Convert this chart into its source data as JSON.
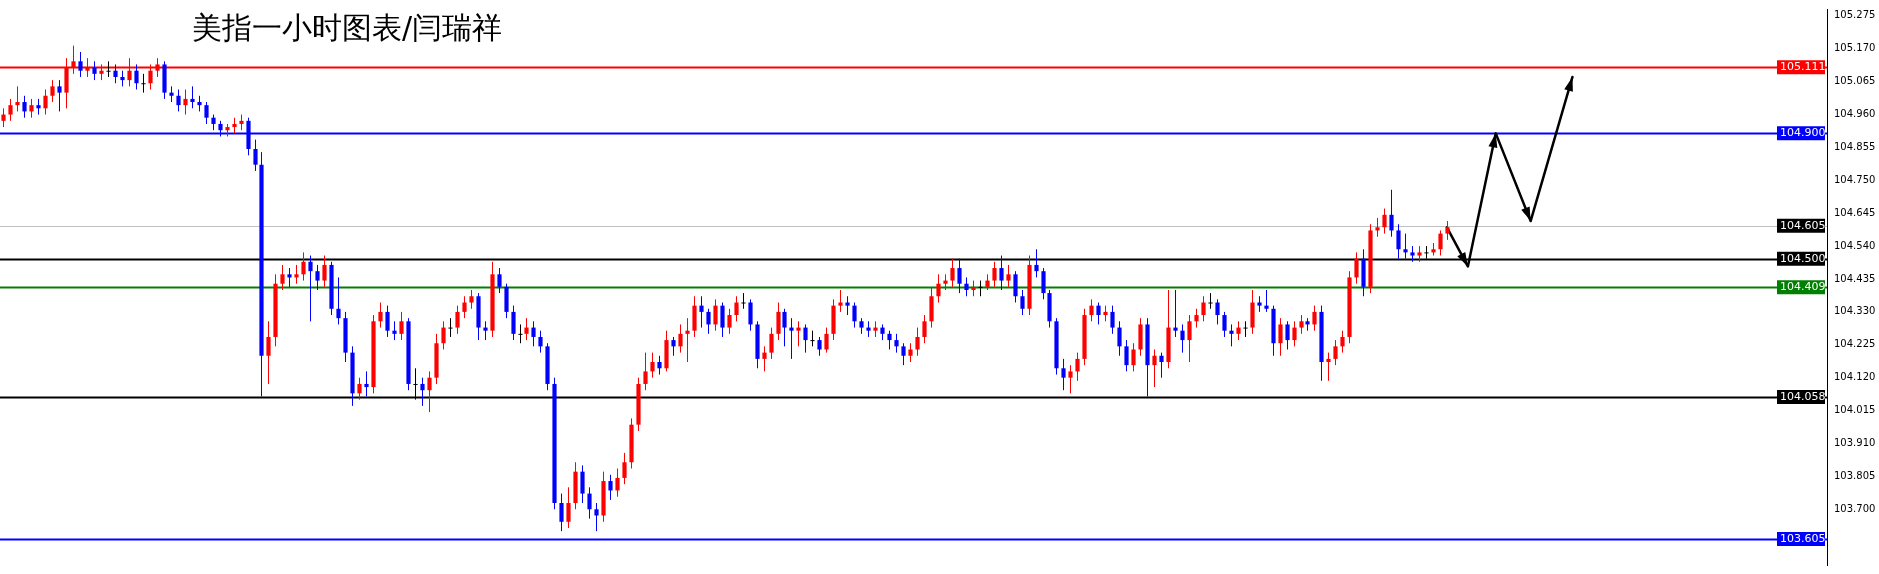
{
  "chart_data": {
    "type": "candlestick",
    "title": "美指一小时图表/闫瑞祥",
    "categories": [
      null,
      null,
      null,
      null,
      null,
      null,
      null,
      null,
      null,
      null,
      null,
      null,
      null,
      null,
      null,
      null,
      null,
      null,
      null,
      null,
      null,
      null,
      null,
      null,
      null,
      null,
      null,
      null,
      null,
      null,
      null,
      null,
      null,
      null,
      null,
      null,
      null,
      null,
      null,
      null,
      null,
      null,
      null,
      null,
      null,
      null,
      null,
      null,
      null,
      null,
      null,
      null,
      null,
      null,
      null,
      null,
      null,
      null,
      null,
      null,
      null,
      null,
      null,
      null,
      null,
      null,
      null,
      null,
      null,
      null,
      null,
      null,
      null,
      null,
      null,
      null,
      null,
      null,
      null,
      null,
      null,
      null,
      null,
      null,
      null,
      null,
      null,
      null,
      null,
      null,
      null,
      null,
      null,
      null,
      null,
      null,
      null,
      null,
      null,
      null,
      null,
      null,
      null,
      null,
      null,
      null,
      null,
      null,
      null,
      null,
      null,
      null,
      null,
      null,
      null,
      null,
      null,
      null,
      null,
      null,
      null,
      null,
      null,
      null,
      null,
      null,
      null,
      null,
      null,
      null,
      null,
      null,
      null,
      null,
      null,
      null,
      null,
      null,
      null,
      null,
      null,
      null,
      null,
      null,
      null,
      null,
      null,
      null,
      null,
      null,
      null,
      null,
      null,
      null,
      null,
      null,
      null,
      null,
      null,
      null,
      null,
      null,
      null,
      null,
      null,
      null,
      null,
      null,
      null,
      null,
      null,
      null,
      null,
      null,
      null,
      null,
      null,
      null,
      null,
      null,
      null,
      null,
      null,
      null,
      null,
      null,
      null,
      null,
      null,
      null,
      null,
      null,
      null,
      null,
      null,
      null,
      null,
      null,
      null,
      null,
      null,
      null,
      null,
      null,
      null,
      null,
      null,
      null,
      null,
      null,
      null,
      null,
      null,
      null,
      null,
      null,
      null,
      null,
      null,
      null,
      null,
      null,
      null,
      null,
      null,
      null,
      null,
      null,
      null,
      null,
      null,
      null,
      null,
      null,
      null,
      null,
      null,
      null,
      null,
      null,
      null,
      null,
      null,
      null,
      null,
      null,
      null,
      null,
      null,
      null,
      null,
      null,
      null,
      null,
      null,
      null,
      null,
      null,
      null,
      null,
      null,
      null
    ],
    "ohlc": [
      [
        104.94,
        104.98,
        104.92,
        104.96
      ],
      [
        104.96,
        105.01,
        104.94,
        104.99
      ],
      [
        104.99,
        105.05,
        104.97,
        105.0
      ],
      [
        105.0,
        105.02,
        104.95,
        104.97
      ],
      [
        104.97,
        105.01,
        104.95,
        104.99
      ],
      [
        104.99,
        105.01,
        104.96,
        104.98
      ],
      [
        104.98,
        105.04,
        104.96,
        105.02
      ],
      [
        105.02,
        105.07,
        105.0,
        105.05
      ],
      [
        105.05,
        105.07,
        104.97,
        105.03
      ],
      [
        105.03,
        105.14,
        104.98,
        105.11
      ],
      [
        105.11,
        105.18,
        105.09,
        105.13
      ],
      [
        105.13,
        105.16,
        105.08,
        105.1
      ],
      [
        105.1,
        105.14,
        105.08,
        105.11
      ],
      [
        105.11,
        105.13,
        105.07,
        105.09
      ],
      [
        105.09,
        105.12,
        105.07,
        105.1
      ],
      [
        105.1,
        105.13,
        105.08,
        105.1
      ],
      [
        105.1,
        105.12,
        105.06,
        105.08
      ],
      [
        105.08,
        105.1,
        105.05,
        105.07
      ],
      [
        105.07,
        105.14,
        105.05,
        105.1
      ],
      [
        105.1,
        105.12,
        105.04,
        105.06
      ],
      [
        105.06,
        105.09,
        105.03,
        105.06
      ],
      [
        105.06,
        105.12,
        105.04,
        105.1
      ],
      [
        105.1,
        105.14,
        105.08,
        105.12
      ],
      [
        105.12,
        105.13,
        105.01,
        105.03
      ],
      [
        105.03,
        105.05,
        105.0,
        105.02
      ],
      [
        105.02,
        105.04,
        104.97,
        104.99
      ],
      [
        104.99,
        105.04,
        104.96,
        105.01
      ],
      [
        105.01,
        105.05,
        104.98,
        105.0
      ],
      [
        105.0,
        105.02,
        104.97,
        104.99
      ],
      [
        104.99,
        105.0,
        104.93,
        104.95
      ],
      [
        104.95,
        104.96,
        104.91,
        104.93
      ],
      [
        104.93,
        104.94,
        104.89,
        104.91
      ],
      [
        104.91,
        104.93,
        104.89,
        104.92
      ],
      [
        104.92,
        104.95,
        104.9,
        104.93
      ],
      [
        104.93,
        104.96,
        104.91,
        104.94
      ],
      [
        104.94,
        104.95,
        104.83,
        104.85
      ],
      [
        104.85,
        104.88,
        104.78,
        104.8
      ],
      [
        104.8,
        104.84,
        104.06,
        104.19
      ],
      [
        104.19,
        104.3,
        104.1,
        104.25
      ],
      [
        104.25,
        104.45,
        104.22,
        104.42
      ],
      [
        104.42,
        104.48,
        104.4,
        104.45
      ],
      [
        104.45,
        104.47,
        104.41,
        104.44
      ],
      [
        104.44,
        104.48,
        104.42,
        104.45
      ],
      [
        104.45,
        104.52,
        104.43,
        104.49
      ],
      [
        104.49,
        104.51,
        104.3,
        104.46
      ],
      [
        104.46,
        104.48,
        104.4,
        104.43
      ],
      [
        104.43,
        104.51,
        104.41,
        104.48
      ],
      [
        104.48,
        104.49,
        104.32,
        104.34
      ],
      [
        104.34,
        104.44,
        104.29,
        104.31
      ],
      [
        104.31,
        104.33,
        104.17,
        104.2
      ],
      [
        104.2,
        104.22,
        104.03,
        104.07
      ],
      [
        104.07,
        104.12,
        104.05,
        104.1
      ],
      [
        104.1,
        104.14,
        104.06,
        104.09
      ],
      [
        104.09,
        104.32,
        104.07,
        104.3
      ],
      [
        104.3,
        104.36,
        104.28,
        104.33
      ],
      [
        104.33,
        104.35,
        104.25,
        104.27
      ],
      [
        104.27,
        104.3,
        104.24,
        104.26
      ],
      [
        104.26,
        104.33,
        104.24,
        104.3
      ],
      [
        104.3,
        104.31,
        104.08,
        104.1
      ],
      [
        104.1,
        104.15,
        104.05,
        104.1
      ],
      [
        104.1,
        104.12,
        104.03,
        104.08
      ],
      [
        104.08,
        104.14,
        104.01,
        104.12
      ],
      [
        104.12,
        104.26,
        104.1,
        104.23
      ],
      [
        104.23,
        104.3,
        104.21,
        104.28
      ],
      [
        104.28,
        104.31,
        104.25,
        104.28
      ],
      [
        104.28,
        104.35,
        104.26,
        104.33
      ],
      [
        104.33,
        104.38,
        104.31,
        104.36
      ],
      [
        104.36,
        104.4,
        104.34,
        104.38
      ],
      [
        104.38,
        104.39,
        104.24,
        104.28
      ],
      [
        104.28,
        104.3,
        104.24,
        104.27
      ],
      [
        104.27,
        104.49,
        104.25,
        104.45
      ],
      [
        104.45,
        104.47,
        104.39,
        104.41
      ],
      [
        104.41,
        104.42,
        104.31,
        104.33
      ],
      [
        104.33,
        104.35,
        104.24,
        104.26
      ],
      [
        104.26,
        104.29,
        104.23,
        104.26
      ],
      [
        104.26,
        104.31,
        104.24,
        104.28
      ],
      [
        104.28,
        104.3,
        104.22,
        104.25
      ],
      [
        104.25,
        104.27,
        104.2,
        104.22
      ],
      [
        104.22,
        104.23,
        104.08,
        104.1
      ],
      [
        104.1,
        104.12,
        103.7,
        103.72
      ],
      [
        103.72,
        103.75,
        103.63,
        103.66
      ],
      [
        103.66,
        103.77,
        103.64,
        103.72
      ],
      [
        103.72,
        103.85,
        103.7,
        103.82
      ],
      [
        103.82,
        103.84,
        103.72,
        103.75
      ],
      [
        103.75,
        103.77,
        103.67,
        103.7
      ],
      [
        103.7,
        103.72,
        103.63,
        103.68
      ],
      [
        103.68,
        103.82,
        103.66,
        103.79
      ],
      [
        103.79,
        103.81,
        103.73,
        103.76
      ],
      [
        103.76,
        103.83,
        103.74,
        103.8
      ],
      [
        103.8,
        103.88,
        103.78,
        103.85
      ],
      [
        103.85,
        103.99,
        103.83,
        103.97
      ],
      [
        103.97,
        104.12,
        103.95,
        104.1
      ],
      [
        104.1,
        104.2,
        104.08,
        104.14
      ],
      [
        104.14,
        104.2,
        104.12,
        104.17
      ],
      [
        104.17,
        104.19,
        104.13,
        104.15
      ],
      [
        104.15,
        104.27,
        104.14,
        104.24
      ],
      [
        104.24,
        104.25,
        104.19,
        104.22
      ],
      [
        104.22,
        104.29,
        104.2,
        104.26
      ],
      [
        104.26,
        104.31,
        104.17,
        104.27
      ],
      [
        104.27,
        104.38,
        104.25,
        104.35
      ],
      [
        104.35,
        104.38,
        104.28,
        104.33
      ],
      [
        104.33,
        104.34,
        104.26,
        104.29
      ],
      [
        104.29,
        104.37,
        104.27,
        104.35
      ],
      [
        104.35,
        104.36,
        104.25,
        104.28
      ],
      [
        104.28,
        104.34,
        104.26,
        104.32
      ],
      [
        104.32,
        104.38,
        104.3,
        104.36
      ],
      [
        104.36,
        104.39,
        104.34,
        104.36
      ],
      [
        104.36,
        104.37,
        104.27,
        104.29
      ],
      [
        104.29,
        104.3,
        104.15,
        104.18
      ],
      [
        104.18,
        104.22,
        104.14,
        104.2
      ],
      [
        104.2,
        104.28,
        104.18,
        104.26
      ],
      [
        104.26,
        104.36,
        104.24,
        104.33
      ],
      [
        104.33,
        104.34,
        104.22,
        104.28
      ],
      [
        104.28,
        104.31,
        104.18,
        104.27
      ],
      [
        104.27,
        104.3,
        104.22,
        104.28
      ],
      [
        104.28,
        104.29,
        104.2,
        104.24
      ],
      [
        104.24,
        104.27,
        104.22,
        104.24
      ],
      [
        104.24,
        104.25,
        104.19,
        104.21
      ],
      [
        104.21,
        104.28,
        104.2,
        104.26
      ],
      [
        104.26,
        104.37,
        104.24,
        104.35
      ],
      [
        104.35,
        104.4,
        104.33,
        104.36
      ],
      [
        104.36,
        104.38,
        104.32,
        104.35
      ],
      [
        104.35,
        104.36,
        104.28,
        104.3
      ],
      [
        104.3,
        104.31,
        104.26,
        104.28
      ],
      [
        104.28,
        104.3,
        104.25,
        104.27
      ],
      [
        104.27,
        104.3,
        104.25,
        104.28
      ],
      [
        104.28,
        104.29,
        104.24,
        104.26
      ],
      [
        104.26,
        104.27,
        104.21,
        104.24
      ],
      [
        104.24,
        104.26,
        104.2,
        104.22
      ],
      [
        104.22,
        104.23,
        104.16,
        104.19
      ],
      [
        104.19,
        104.23,
        104.17,
        104.21
      ],
      [
        104.21,
        104.28,
        104.19,
        104.25
      ],
      [
        104.25,
        104.32,
        104.23,
        104.3
      ],
      [
        104.3,
        104.41,
        104.28,
        104.38
      ],
      [
        104.38,
        104.45,
        104.36,
        104.42
      ],
      [
        104.42,
        104.45,
        104.4,
        104.43
      ],
      [
        104.43,
        104.5,
        104.41,
        104.47
      ],
      [
        104.47,
        104.5,
        104.39,
        104.42
      ],
      [
        104.42,
        104.44,
        104.38,
        104.4
      ],
      [
        104.4,
        104.43,
        104.38,
        104.41
      ],
      [
        104.41,
        104.43,
        104.38,
        104.41
      ],
      [
        104.41,
        104.45,
        104.4,
        104.43
      ],
      [
        104.43,
        104.49,
        104.41,
        104.47
      ],
      [
        104.47,
        104.51,
        104.4,
        104.43
      ],
      [
        104.43,
        104.48,
        104.41,
        104.45
      ],
      [
        104.45,
        104.46,
        104.36,
        104.38
      ],
      [
        104.38,
        104.4,
        104.32,
        104.34
      ],
      [
        104.34,
        104.51,
        104.32,
        104.48
      ],
      [
        104.48,
        104.53,
        104.44,
        104.46
      ],
      [
        104.46,
        104.47,
        104.37,
        104.39
      ],
      [
        104.39,
        104.4,
        104.28,
        104.3
      ],
      [
        104.3,
        104.31,
        104.13,
        104.15
      ],
      [
        104.15,
        104.18,
        104.08,
        104.12
      ],
      [
        104.12,
        104.16,
        104.07,
        104.14
      ],
      [
        104.14,
        104.2,
        104.11,
        104.18
      ],
      [
        104.18,
        104.34,
        104.16,
        104.32
      ],
      [
        104.32,
        104.37,
        104.3,
        104.35
      ],
      [
        104.35,
        104.36,
        104.29,
        104.32
      ],
      [
        104.32,
        104.35,
        104.3,
        104.33
      ],
      [
        104.33,
        104.35,
        104.26,
        104.28
      ],
      [
        104.28,
        104.3,
        104.19,
        104.22
      ],
      [
        104.22,
        104.24,
        104.14,
        104.16
      ],
      [
        104.16,
        104.23,
        104.14,
        104.21
      ],
      [
        104.21,
        104.31,
        104.19,
        104.29
      ],
      [
        104.29,
        104.31,
        104.06,
        104.16
      ],
      [
        104.16,
        104.21,
        104.09,
        104.19
      ],
      [
        104.19,
        104.2,
        104.12,
        104.17
      ],
      [
        104.17,
        104.4,
        104.15,
        104.28
      ],
      [
        104.28,
        104.4,
        104.25,
        104.27
      ],
      [
        104.27,
        104.29,
        104.2,
        104.24
      ],
      [
        104.24,
        104.32,
        104.17,
        104.3
      ],
      [
        104.3,
        104.34,
        104.28,
        104.32
      ],
      [
        104.32,
        104.38,
        104.3,
        104.36
      ],
      [
        104.36,
        104.39,
        104.34,
        104.36
      ],
      [
        104.36,
        104.37,
        104.29,
        104.32
      ],
      [
        104.32,
        104.33,
        104.25,
        104.27
      ],
      [
        104.27,
        104.29,
        104.22,
        104.26
      ],
      [
        104.26,
        104.3,
        104.24,
        104.28
      ],
      [
        104.28,
        104.3,
        104.25,
        104.28
      ],
      [
        104.28,
        104.4,
        104.26,
        104.36
      ],
      [
        104.36,
        104.38,
        104.33,
        104.35
      ],
      [
        104.35,
        104.4,
        104.33,
        104.34
      ],
      [
        104.34,
        104.35,
        104.19,
        104.23
      ],
      [
        104.23,
        104.31,
        104.19,
        104.29
      ],
      [
        104.29,
        104.3,
        104.21,
        104.24
      ],
      [
        104.24,
        104.3,
        104.22,
        104.28
      ],
      [
        104.28,
        104.32,
        104.26,
        104.3
      ],
      [
        104.3,
        104.31,
        104.27,
        104.29
      ],
      [
        104.29,
        104.35,
        104.27,
        104.33
      ],
      [
        104.33,
        104.35,
        104.11,
        104.17
      ],
      [
        104.17,
        104.2,
        104.11,
        104.18
      ],
      [
        104.18,
        104.24,
        104.16,
        104.22
      ],
      [
        104.22,
        104.27,
        104.2,
        104.25
      ],
      [
        104.25,
        104.46,
        104.23,
        104.44
      ],
      [
        104.44,
        104.52,
        104.42,
        104.5
      ],
      [
        104.5,
        104.53,
        104.38,
        104.41
      ],
      [
        104.41,
        104.61,
        104.39,
        104.59
      ],
      [
        104.59,
        104.63,
        104.57,
        104.6
      ],
      [
        104.6,
        104.66,
        104.58,
        104.64
      ],
      [
        104.64,
        104.72,
        104.57,
        104.59
      ],
      [
        104.59,
        104.61,
        104.5,
        104.53
      ],
      [
        104.53,
        104.58,
        104.5,
        104.52
      ],
      [
        104.52,
        104.54,
        104.49,
        104.51
      ],
      [
        104.51,
        104.54,
        104.49,
        104.52
      ],
      [
        104.52,
        104.54,
        104.5,
        104.52
      ],
      [
        104.52,
        104.55,
        104.51,
        104.53
      ],
      [
        104.53,
        104.59,
        104.51,
        104.58
      ],
      [
        104.58,
        104.62,
        104.56,
        104.6
      ],
      null,
      null,
      null,
      null,
      null,
      null,
      null,
      null,
      null,
      null,
      null,
      null,
      null,
      null,
      null,
      null,
      null,
      null,
      null,
      null,
      null,
      null,
      null,
      null,
      null,
      null,
      null,
      null,
      null,
      null,
      null,
      null,
      null,
      null,
      null,
      null,
      null,
      null,
      null,
      null,
      null,
      null,
      null,
      null,
      null,
      null,
      null,
      null,
      null,
      null,
      null,
      null,
      null,
      null
    ],
    "colors": [
      "#ff0000",
      "#ff0000",
      "#ff0000",
      "#0000ff",
      "#ff0000",
      "#0000ff",
      "#ff0000",
      "#ff0000",
      "#0000ff",
      "#ff0000",
      "#ff0000",
      "#0000ff",
      "#ff0000",
      "#0000ff",
      "#ff0000",
      "#000000",
      "#0000ff",
      "#0000ff",
      "#ff0000",
      "#0000ff",
      "#000000",
      "#ff0000",
      "#ff0000",
      "#0000ff",
      "#0000ff",
      "#0000ff",
      "#ff0000",
      "#0000ff",
      "#0000ff",
      "#0000ff",
      "#0000ff",
      "#0000ff",
      "#ff0000",
      "#ff0000",
      "#ff0000",
      "#0000ff",
      "#0000ff",
      "#0000ff",
      "#ff0000",
      "#ff0000",
      "#ff0000",
      "#0000ff",
      "#ff0000",
      "#ff0000",
      "#0000ff",
      "#0000ff",
      "#ff0000",
      "#0000ff",
      "#0000ff",
      "#0000ff",
      "#0000ff",
      "#ff0000",
      "#0000ff",
      "#ff0000",
      "#ff0000",
      "#0000ff",
      "#0000ff",
      "#ff0000",
      "#0000ff",
      "#000000",
      "#0000ff",
      "#ff0000",
      "#ff0000",
      "#ff0000",
      "#000000",
      "#ff0000",
      "#ff0000",
      "#ff0000",
      "#0000ff",
      "#0000ff",
      "#ff0000",
      "#0000ff",
      "#0000ff",
      "#0000ff",
      "#000000",
      "#ff0000",
      "#0000ff",
      "#0000ff",
      "#0000ff",
      "#0000ff",
      "#0000ff",
      "#ff0000",
      "#ff0000",
      "#0000ff",
      "#0000ff",
      "#0000ff",
      "#ff0000",
      "#0000ff",
      "#ff0000",
      "#ff0000",
      "#ff0000",
      "#ff0000",
      "#ff0000",
      "#ff0000",
      "#0000ff",
      "#ff0000",
      "#0000ff",
      "#ff0000",
      "#ff0000",
      "#ff0000",
      "#0000ff",
      "#0000ff",
      "#ff0000",
      "#0000ff",
      "#ff0000",
      "#ff0000",
      "#000000",
      "#0000ff",
      "#0000ff",
      "#ff0000",
      "#ff0000",
      "#ff0000",
      "#0000ff",
      "#0000ff",
      "#ff0000",
      "#0000ff",
      "#000000",
      "#0000ff",
      "#ff0000",
      "#ff0000",
      "#ff0000",
      "#0000ff",
      "#0000ff",
      "#0000ff",
      "#0000ff",
      "#ff0000",
      "#0000ff",
      "#0000ff",
      "#0000ff",
      "#0000ff",
      "#ff0000",
      "#ff0000",
      "#ff0000",
      "#ff0000",
      "#ff0000",
      "#ff0000",
      "#ff0000",
      "#0000ff",
      "#0000ff",
      "#ff0000",
      "#000000",
      "#ff0000",
      "#ff0000",
      "#0000ff",
      "#ff0000",
      "#0000ff",
      "#0000ff",
      "#ff0000",
      "#0000ff",
      "#0000ff",
      "#0000ff",
      "#0000ff",
      "#0000ff",
      "#ff0000",
      "#ff0000",
      "#ff0000",
      "#ff0000",
      "#0000ff",
      "#ff0000",
      "#0000ff",
      "#0000ff",
      "#0000ff",
      "#ff0000",
      "#ff0000",
      "#0000ff",
      "#ff0000",
      "#0000ff",
      "#ff0000",
      "#0000ff",
      "#0000ff",
      "#ff0000",
      "#ff0000",
      "#ff0000",
      "#000000",
      "#0000ff",
      "#0000ff",
      "#0000ff",
      "#ff0000",
      "#000000",
      "#ff0000",
      "#0000ff",
      "#0000ff",
      "#0000ff",
      "#ff0000",
      "#0000ff",
      "#ff0000",
      "#ff0000",
      "#0000ff",
      "#ff0000",
      "#0000ff",
      "#ff0000",
      "#ff0000",
      "#ff0000",
      "#ff0000",
      "#ff0000",
      "#0000ff",
      "#ff0000",
      "#ff0000",
      "#ff0000",
      "#0000ff",
      "#0000ff",
      "#0000ff",
      "#0000ff",
      "#ff0000",
      "#000000",
      "#ff0000",
      "#ff0000",
      "#ff0000",
      null,
      null,
      null,
      null,
      null,
      null,
      null,
      null,
      null,
      null,
      null,
      null,
      null,
      null,
      null,
      null,
      null,
      null,
      null,
      null,
      null,
      null,
      null,
      null,
      null,
      null,
      null,
      null,
      null,
      null,
      null,
      null,
      null,
      null,
      null,
      null,
      null,
      null,
      null,
      null,
      null,
      null,
      null,
      null,
      null,
      null,
      null,
      null,
      null,
      null,
      null,
      null,
      null,
      null
    ],
    "ylim": [
      103.522,
      105.297
    ],
    "yticks": [
      {
        "value": 103.7,
        "label": "103.700"
      },
      {
        "value": 103.805,
        "label": "103.805"
      },
      {
        "value": 103.91,
        "label": "103.910"
      },
      {
        "value": 104.015,
        "label": "104.015"
      },
      {
        "value": 104.12,
        "label": "104.120"
      },
      {
        "value": 104.225,
        "label": "104.225"
      },
      {
        "value": 104.33,
        "label": "104.330"
      },
      {
        "value": 104.435,
        "label": "104.435"
      },
      {
        "value": 104.54,
        "label": "104.540"
      },
      {
        "value": 104.645,
        "label": "104.645"
      },
      {
        "value": 104.75,
        "label": "104.750"
      },
      {
        "value": 104.855,
        "label": "104.855"
      },
      {
        "value": 104.96,
        "label": "104.960"
      },
      {
        "value": 105.065,
        "label": "105.065"
      },
      {
        "value": 105.17,
        "label": "105.170"
      },
      {
        "value": 105.275,
        "label": "105.275"
      }
    ],
    "ref_lines": [
      {
        "axis": "y",
        "value": 105.111,
        "label": "105.111",
        "color": "#ff0000"
      },
      {
        "axis": "y",
        "value": 104.9,
        "label": "104.900",
        "color": "#0000ff"
      },
      {
        "axis": "y",
        "value": 104.605,
        "label": "104.605",
        "color": "#c0c0c0"
      },
      {
        "axis": "y",
        "value": 104.5,
        "label": "104.500",
        "color": "#000000"
      },
      {
        "axis": "y",
        "value": 104.409,
        "label": "104.409",
        "color": "#008000"
      },
      {
        "axis": "y",
        "value": 104.058,
        "label": "104.058",
        "color": "#000000"
      },
      {
        "axis": "y",
        "value": 103.605,
        "label": "103.605",
        "color": "#0000ff"
      }
    ],
    "series": [
      {
        "type": "line",
        "color": "#000000",
        "values": [
          null,
          null,
          null,
          null,
          null,
          null,
          null,
          null,
          null,
          null,
          null,
          null,
          null,
          null,
          null,
          null,
          null,
          null,
          null,
          null,
          null,
          null,
          null,
          null,
          null,
          null,
          null,
          null,
          null,
          null,
          null,
          null,
          null,
          null,
          null,
          null,
          null,
          null,
          null,
          null,
          null,
          null,
          null,
          null,
          null,
          null,
          null,
          null,
          null,
          null,
          null,
          null,
          null,
          null,
          null,
          null,
          null,
          null,
          null,
          null,
          null,
          null,
          null,
          null,
          null,
          null,
          null,
          null,
          null,
          null,
          null,
          null,
          null,
          null,
          null,
          null,
          null,
          null,
          null,
          null,
          null,
          null,
          null,
          null,
          null,
          null,
          null,
          null,
          null,
          null,
          null,
          null,
          null,
          null,
          null,
          null,
          null,
          null,
          null,
          null,
          null,
          null,
          null,
          null,
          null,
          null,
          null,
          null,
          null,
          null,
          null,
          null,
          null,
          null,
          null,
          null,
          null,
          null,
          null,
          null,
          null,
          null,
          null,
          null,
          null,
          null,
          null,
          null,
          null,
          null,
          null,
          null,
          null,
          null,
          null,
          null,
          null,
          null,
          null,
          null,
          null,
          null,
          null,
          null,
          null,
          null,
          null,
          null,
          null,
          null,
          null,
          null,
          null,
          null,
          null,
          null,
          null,
          null,
          null,
          null,
          null,
          null,
          null,
          null,
          null,
          null,
          null,
          null,
          null,
          null,
          null,
          null,
          null,
          null,
          null,
          null,
          null,
          null,
          null,
          null,
          null,
          null,
          null,
          null,
          null,
          null,
          null,
          null,
          null,
          null,
          null,
          null,
          null,
          null,
          null,
          null,
          null,
          null,
          null,
          null,
          null,
          null,
          null,
          null,
          null,
          null,
          null,
          104.6,
          null,
          null,
          104.475,
          null,
          null,
          null,
          104.9,
          null,
          null,
          null,
          null,
          104.62,
          null,
          null,
          null,
          null,
          null,
          105.08,
          null,
          null,
          null,
          null,
          null,
          null,
          null,
          null,
          null,
          null,
          null,
          null,
          null,
          null,
          null,
          null,
          null,
          null,
          null,
          null,
          null,
          null,
          null,
          null,
          null,
          null,
          null,
          null,
          null,
          null,
          null,
          null,
          null,
          null,
          null,
          null
        ]
      }
    ],
    "tick_labels": "y"
  }
}
